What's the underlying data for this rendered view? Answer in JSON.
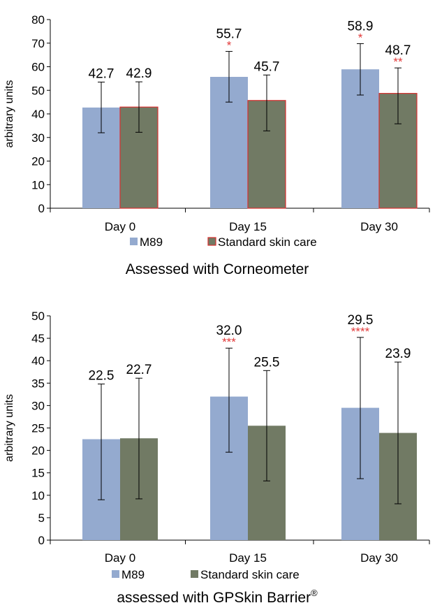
{
  "colors": {
    "m89": "#94aacf",
    "standard": "#717a64",
    "standard_border_top": "#d93030",
    "significance": "#e23a3a",
    "axis": "#000000"
  },
  "chart_data": [
    {
      "type": "bar",
      "caption": "Assessed with Corneometer",
      "ylabel": "arbitrary units",
      "ylim": [
        0,
        80
      ],
      "yticks": [
        "0",
        "10",
        "20",
        "30",
        "40",
        "50",
        "60",
        "70",
        "80"
      ],
      "grid": false,
      "legend_position": "bottom",
      "categories": [
        "Day 0",
        "Day 15",
        "Day 30"
      ],
      "series": [
        {
          "name": "M89",
          "values": [
            42.7,
            55.7,
            58.9
          ],
          "labels": [
            "42.7",
            "55.7",
            "58.9"
          ],
          "error_low": [
            32.0,
            45.0,
            48.0
          ],
          "error_high": [
            53.5,
            66.5,
            69.8
          ],
          "significance": [
            "",
            "*",
            "*"
          ]
        },
        {
          "name": "Standard skin care",
          "values": [
            42.9,
            45.7,
            48.7
          ],
          "labels": [
            "42.9",
            "45.7",
            "48.7"
          ],
          "error_low": [
            32.2,
            32.8,
            35.8
          ],
          "error_high": [
            53.6,
            56.5,
            59.5
          ],
          "significance": [
            "",
            "",
            "**"
          ]
        }
      ]
    },
    {
      "type": "bar",
      "caption": "assessed with GPSkin Barrier",
      "caption_sup": "®",
      "ylabel": "arbitrary units",
      "ylim": [
        0,
        50
      ],
      "yticks": [
        "0",
        "5",
        "10",
        "15",
        "20",
        "25",
        "30",
        "35",
        "40",
        "45",
        "50"
      ],
      "grid": false,
      "legend_position": "bottom",
      "categories": [
        "Day 0",
        "Day 15",
        "Day 30"
      ],
      "series": [
        {
          "name": "M89",
          "values": [
            22.5,
            32.0,
            29.5
          ],
          "labels": [
            "22.5",
            "32.0",
            "29.5"
          ],
          "error_low": [
            9.0,
            19.6,
            13.7
          ],
          "error_high": [
            34.8,
            42.8,
            45.2
          ],
          "significance": [
            "",
            "***",
            "****"
          ]
        },
        {
          "name": "Standard skin care",
          "values": [
            22.7,
            25.5,
            23.9
          ],
          "labels": [
            "22.7",
            "25.5",
            "23.9"
          ],
          "error_low": [
            9.2,
            13.2,
            8.1
          ],
          "error_high": [
            36.1,
            37.8,
            39.7
          ],
          "significance": [
            "",
            "",
            ""
          ]
        }
      ]
    }
  ]
}
